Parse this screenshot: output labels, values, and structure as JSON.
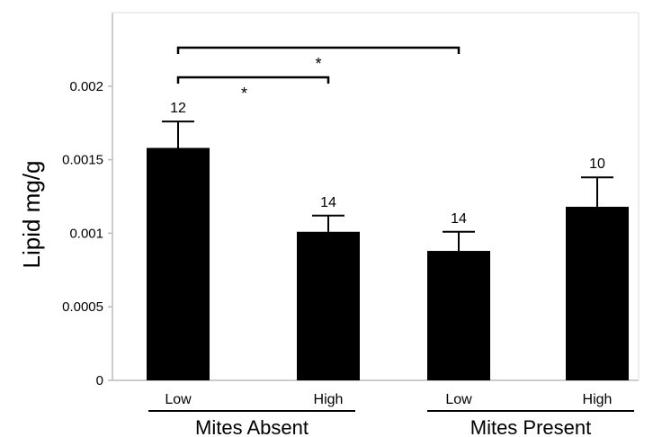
{
  "chart_data": {
    "type": "bar",
    "ylabel": "Lipid mg/g",
    "ylim": [
      0,
      0.0025
    ],
    "yticks": [
      "0",
      "0.0005",
      "0.001",
      "0.0015",
      "0.002"
    ],
    "categories": [
      "Low",
      "High",
      "Low",
      "High"
    ],
    "groups": [
      "Mites Absent",
      "Mites Present"
    ],
    "values": [
      0.00158,
      0.00101,
      0.00088,
      0.00118
    ],
    "errors": [
      0.00018,
      0.00011,
      0.00013,
      0.0002
    ],
    "n_labels": [
      "12",
      "14",
      "14",
      "10"
    ],
    "significance": [
      {
        "from": 0,
        "to": 1,
        "label": "*"
      },
      {
        "from": 0,
        "to": 2,
        "label": "*"
      }
    ],
    "colors": {
      "bar": "#000000",
      "axis": "#bbbbbb"
    }
  }
}
